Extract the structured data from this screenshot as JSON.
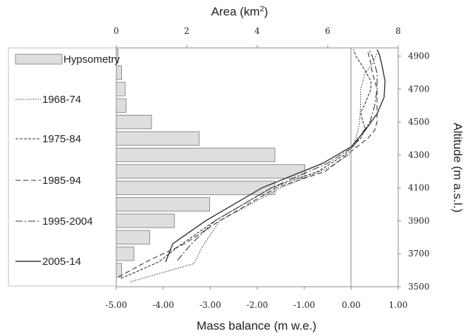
{
  "chart_data": {
    "type": "line",
    "top_axis": {
      "label": "Area (km",
      "label_sup": "2",
      "label_end": ")",
      "range": [
        0,
        8
      ],
      "ticks": [
        "0",
        "2",
        "4",
        "6",
        "8"
      ]
    },
    "bottom_axis": {
      "label": "Mass balance (m w.e.)",
      "range": [
        -5.0,
        1.0
      ],
      "ticks": [
        "-5.00",
        "-4.00",
        "-3.00",
        "-2.00",
        "-1.00",
        "0.00",
        "1.00"
      ]
    },
    "right_axis": {
      "label": "Altitude (m a.s.l.)",
      "range": [
        3500,
        4950
      ],
      "ticks": [
        "3500",
        "3700",
        "3900",
        "4100",
        "4300",
        "4500",
        "4700",
        "4900"
      ]
    },
    "hypsometry": {
      "name": "Hypsometry",
      "color": "#dedede",
      "altitudes": [
        4900,
        4800,
        4700,
        4600,
        4500,
        4400,
        4300,
        4200,
        4100,
        4000,
        3900,
        3800,
        3700,
        3600
      ],
      "areas": [
        0.05,
        0.15,
        0.25,
        0.28,
        1.0,
        2.35,
        4.5,
        5.35,
        4.5,
        2.65,
        1.65,
        0.95,
        0.5,
        0.15
      ]
    },
    "series": [
      {
        "name": "1968-74",
        "dash": "1.5,2",
        "altitude": [
          3530,
          3640,
          3750,
          3900,
          4100,
          4220,
          4300,
          4400,
          4500,
          4600,
          4700,
          4800,
          4850,
          4920
        ],
        "mass_balance": [
          -4.7,
          -3.35,
          -3.15,
          -2.8,
          -1.5,
          -0.5,
          -0.05,
          0.1,
          0.18,
          0.2,
          0.2,
          0.3,
          0.45,
          0.55
        ]
      },
      {
        "name": "1975-84",
        "dash": "4,2",
        "altitude": [
          3550,
          3650,
          3760,
          3900,
          4100,
          4200,
          4300,
          4400,
          4460,
          4500,
          4560,
          4600,
          4650,
          4700,
          4750,
          4820,
          4900,
          4940
        ],
        "mass_balance": [
          -4.9,
          -4.1,
          -3.6,
          -2.9,
          -1.7,
          -0.7,
          -0.15,
          0.2,
          0.3,
          0.25,
          0.2,
          0.28,
          0.35,
          0.42,
          0.42,
          0.28,
          0.1,
          0.05
        ]
      },
      {
        "name": "1985-94",
        "dash": "7,4",
        "altitude": [
          3560,
          3660,
          3760,
          3900,
          4100,
          4200,
          4300,
          4400,
          4450,
          4500,
          4600,
          4700,
          4800,
          4880,
          4930
        ],
        "mass_balance": [
          -4.95,
          -4.3,
          -3.55,
          -2.8,
          -1.6,
          -0.55,
          -0.1,
          0.35,
          0.5,
          0.55,
          0.55,
          0.55,
          0.45,
          0.4,
          0.35
        ]
      },
      {
        "name": "1995-2004",
        "dash": "10,3,2,3",
        "altitude": [
          3660,
          3760,
          3900,
          4100,
          4250,
          4350,
          4420,
          4500,
          4600,
          4700,
          4800,
          4900,
          4940
        ],
        "mass_balance": [
          -3.7,
          -3.4,
          -2.9,
          -1.7,
          -0.5,
          0.05,
          0.2,
          0.4,
          0.5,
          0.55,
          0.55,
          0.45,
          0.38
        ]
      },
      {
        "name": "2005-14",
        "dash": "",
        "altitude": [
          3650,
          3760,
          3900,
          4100,
          4250,
          4350,
          4450,
          4550,
          4650,
          4750,
          4850,
          4910,
          4940
        ],
        "mass_balance": [
          -3.95,
          -3.8,
          -3.1,
          -1.9,
          -0.6,
          0.0,
          0.3,
          0.55,
          0.7,
          0.72,
          0.65,
          0.6,
          0.55
        ]
      }
    ],
    "grid": false,
    "legend_position": "left"
  }
}
